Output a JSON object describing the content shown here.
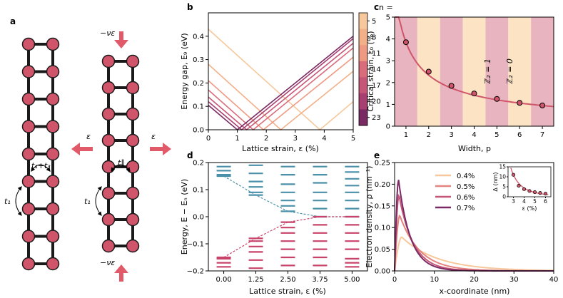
{
  "panel_labels": {
    "a": "a",
    "b": "b",
    "c": "c",
    "d": "d",
    "e": "e"
  },
  "colors": {
    "node": "#d0556a",
    "bond": "#1a1a1a",
    "arrow": "#e05a6a",
    "band_up": "#4a90a8",
    "band_down": "#c8436a",
    "stripe_light": "#fbe3c4",
    "stripe_dark": "#e8b4bf",
    "ramp": [
      "#f6c89b",
      "#f2b089",
      "#ee9a82",
      "#e5837e",
      "#d86c7b",
      "#c65677",
      "#a73f70",
      "#7a2a63"
    ]
  },
  "panel_a": {
    "left_hopping_pair": "t₁+t₃",
    "left_hopping_rung": "t₁",
    "right_hopping_pair": "t∥",
    "right_hopping_rung": "t₁",
    "strain_left": "ε",
    "strain_right": "ε",
    "compress_top": "−νε",
    "compress_bottom": "−νε"
  },
  "chart_data": [
    {
      "panel": "b",
      "type": "line",
      "xlabel": "Lattice strain, ε (%)",
      "ylabel": "Energy gap, E₉ (eV)",
      "xlim": [
        0,
        5
      ],
      "ylim": [
        0,
        0.5
      ],
      "xticks": [
        "0",
        "1",
        "2",
        "3",
        "4",
        "5"
      ],
      "yticks": [
        "0.0",
        "0.1",
        "0.2",
        "0.3",
        "0.4"
      ],
      "colorbar": {
        "title": "n =",
        "labels": [
          "5",
          "8",
          "11",
          "14",
          "17",
          "20",
          "23"
        ]
      },
      "series": [
        {
          "name": "5",
          "points": [
            [
              0,
              0.43
            ],
            [
              3.85,
              0
            ],
            [
              5,
              0.12
            ]
          ]
        },
        {
          "name": "8",
          "points": [
            [
              0,
              0.28
            ],
            [
              2.5,
              0
            ],
            [
              5,
              0.25
            ]
          ]
        },
        {
          "name": "11",
          "points": [
            [
              0,
              0.21
            ],
            [
              1.9,
              0
            ],
            [
              5,
              0.31
            ]
          ]
        },
        {
          "name": "14",
          "points": [
            [
              0,
              0.17
            ],
            [
              1.55,
              0
            ],
            [
              5,
              0.35
            ]
          ]
        },
        {
          "name": "17",
          "points": [
            [
              0,
              0.14
            ],
            [
              1.32,
              0
            ],
            [
              5,
              0.37
            ]
          ]
        },
        {
          "name": "20",
          "points": [
            [
              0,
              0.12
            ],
            [
              1.15,
              0
            ],
            [
              5,
              0.39
            ]
          ]
        },
        {
          "name": "23",
          "points": [
            [
              0,
              0.105
            ],
            [
              1.0,
              0
            ],
            [
              5,
              0.4
            ]
          ]
        }
      ]
    },
    {
      "panel": "c",
      "type": "scatter",
      "xlabel": "Width, p",
      "ylabel": "Critical strain, ε₀ (%)",
      "xlim": [
        0.5,
        7.5
      ],
      "ylim": [
        0,
        5
      ],
      "xticks": [
        "1",
        "2",
        "3",
        "4",
        "5",
        "6",
        "7"
      ],
      "yticks": [
        "0",
        "1",
        "2",
        "3",
        "4",
        "5"
      ],
      "annotations": [
        "ℤ₂ = 1",
        "ℤ₂ = 0"
      ],
      "x": [
        1,
        2,
        3,
        4,
        5,
        6,
        7
      ],
      "y": [
        3.85,
        2.5,
        1.85,
        1.5,
        1.25,
        1.07,
        0.95
      ]
    },
    {
      "panel": "d",
      "type": "scatter",
      "xlabel": "Lattice strain, ε (%)",
      "ylabel": "Energy, E − Eₙ (eV)",
      "xlim": [
        -0.6,
        5.6
      ],
      "ylim": [
        -0.2,
        0.2
      ],
      "xticks": [
        "0.00",
        "1.25",
        "2.50",
        "3.75",
        "5.00"
      ],
      "yticks": [
        "−0.2",
        "−0.1",
        "0.0",
        "0.1",
        "0.2"
      ],
      "levels_up": [
        [
          0.185,
          0.17,
          0.155,
          0.15
        ],
        [
          0.19,
          0.16,
          0.13,
          0.11,
          0.09,
          0.08
        ],
        [
          0.185,
          0.155,
          0.12,
          0.09,
          0.06,
          0.04,
          0.02
        ],
        [
          0.185,
          0.155,
          0.125,
          0.09,
          0.06,
          0.03,
          0.0
        ],
        [
          0.185,
          0.165,
          0.14,
          0.115,
          0.09,
          0.06,
          0.03,
          0.0
        ]
      ],
      "levels_down": [
        [
          -0.15,
          -0.155,
          -0.17,
          -0.185
        ],
        [
          -0.08,
          -0.09,
          -0.11,
          -0.13,
          -0.16,
          -0.19
        ],
        [
          -0.02,
          -0.04,
          -0.06,
          -0.09,
          -0.12,
          -0.15,
          -0.18
        ],
        [
          0.0,
          -0.03,
          -0.06,
          -0.09,
          -0.12,
          -0.15,
          -0.18
        ],
        [
          0.0,
          -0.03,
          -0.06,
          -0.09,
          -0.12,
          -0.155,
          -0.17,
          -0.185
        ]
      ],
      "dashed_up": [
        [
          0,
          0.15
        ],
        [
          1.25,
          0.08
        ],
        [
          2.5,
          0.02
        ],
        [
          3.75,
          0.0
        ],
        [
          5.0,
          0.0
        ]
      ],
      "dashed_down": [
        [
          0,
          -0.15
        ],
        [
          1.25,
          -0.08
        ],
        [
          2.5,
          -0.02
        ],
        [
          3.75,
          0.0
        ],
        [
          5.0,
          0.0
        ]
      ]
    },
    {
      "panel": "e",
      "type": "line",
      "xlabel": "x-coordinate (nm)",
      "ylabel": "Electron density, ρ (nm⁻¹)",
      "xlim": [
        0,
        40
      ],
      "ylim": [
        0,
        0.25
      ],
      "xticks": [
        "0",
        "10",
        "20",
        "30",
        "40"
      ],
      "yticks": [
        "0.00",
        "0.05",
        "0.10",
        "0.15",
        "0.20",
        "0.25"
      ],
      "series": [
        {
          "name": "0.4%",
          "peak": 0.078,
          "xpeak": 1.8,
          "decay": 9.0
        },
        {
          "name": "0.5%",
          "peak": 0.128,
          "xpeak": 1.3,
          "decay": 5.0
        },
        {
          "name": "0.6%",
          "peak": 0.175,
          "xpeak": 1.1,
          "decay": 3.6
        },
        {
          "name": "0.7%",
          "peak": 0.21,
          "xpeak": 1.0,
          "decay": 3.0
        }
      ],
      "inset": {
        "type": "scatter",
        "xlabel": "ε (%)",
        "ylabel": "Δ (nm)",
        "xticks": [
          "3",
          "4",
          "5",
          "6"
        ],
        "yticks": [
          "0",
          "5",
          "10",
          "15"
        ],
        "xlim": [
          2.5,
          6.5
        ],
        "ylim": [
          0,
          15
        ],
        "x": [
          3.0,
          3.5,
          4.0,
          4.5,
          5.0,
          5.5,
          6.0
        ],
        "y": [
          11,
          5.5,
          3.8,
          2.9,
          2.3,
          1.9,
          1.6
        ]
      }
    }
  ]
}
